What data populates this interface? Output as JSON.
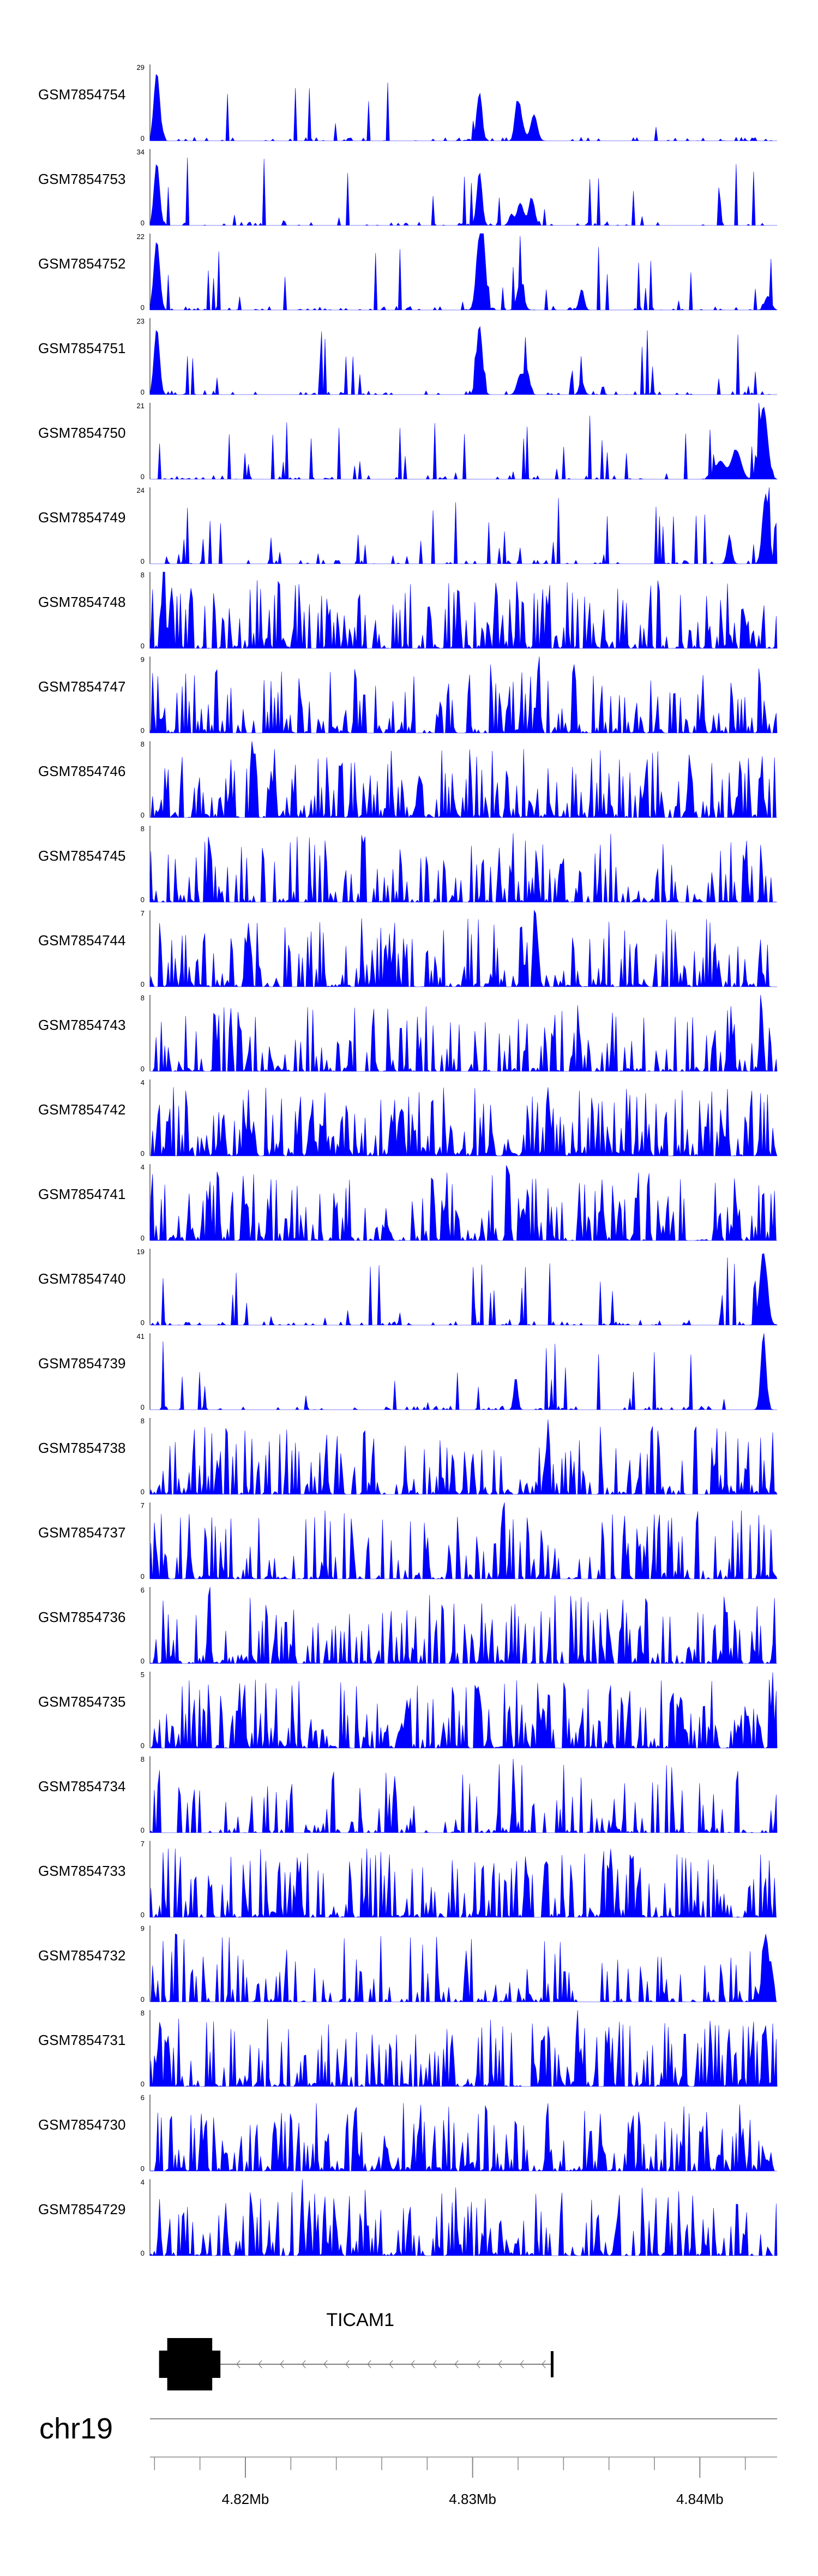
{
  "chart_data": {
    "type": "area",
    "chromosome": "chr19",
    "region": {
      "start": 4813800,
      "end": 4841400
    },
    "fill_color": "#0000ff",
    "gene": {
      "name": "TICAM1",
      "start": 4814200,
      "end": 4831500,
      "strand": "-",
      "exon_start": 4814200,
      "exon_end": 4816900
    },
    "x_ticks": [
      4814000,
      4816000,
      4818000,
      4820000,
      4822000,
      4824000,
      4826000,
      4828000,
      4830000,
      4832000,
      4834000,
      4836000,
      4838000,
      4840000
    ],
    "x_tick_labels": [
      {
        "pos": 4818000,
        "label": "4.82Mb"
      },
      {
        "pos": 4828000,
        "label": "4.83Mb"
      },
      {
        "pos": 4838000,
        "label": "4.84Mb"
      }
    ],
    "tracks": [
      {
        "name": "GSM7854754",
        "ymax": 29,
        "ymax_label": "29",
        "ymin_label": "0",
        "peaks": [
          [
            4814100,
            26,
            180
          ],
          [
            4828300,
            18,
            160
          ],
          [
            4830100,
            8,
            220
          ],
          [
            4830700,
            10,
            200
          ],
          [
            4830000,
            6,
            150
          ],
          [
            4829900,
            5,
            120
          ]
        ],
        "noise": 0.05,
        "seed": 11
      },
      {
        "name": "GSM7854753",
        "ymax": 34,
        "ymax_label": "34",
        "ymin_label": "0",
        "peaks": [
          [
            4814100,
            28,
            170
          ],
          [
            4828300,
            24,
            160
          ],
          [
            4830100,
            10,
            200
          ],
          [
            4830600,
            12,
            180
          ],
          [
            4829700,
            5,
            140
          ]
        ],
        "noise": 0.05,
        "seed": 12
      },
      {
        "name": "GSM7854752",
        "ymax": 22,
        "ymax_label": "22",
        "ymin_label": "0",
        "peaks": [
          [
            4814100,
            20,
            180
          ],
          [
            4828300,
            20,
            200
          ],
          [
            4828500,
            12,
            160
          ],
          [
            4830100,
            8,
            200
          ],
          [
            4832800,
            6,
            150
          ],
          [
            4841000,
            4,
            200
          ]
        ],
        "noise": 0.08,
        "seed": 13
      },
      {
        "name": "GSM7854751",
        "ymax": 23,
        "ymax_label": "23",
        "ymin_label": "0",
        "peaks": [
          [
            4814100,
            20,
            170
          ],
          [
            4828300,
            21,
            180
          ],
          [
            4830100,
            6,
            200
          ],
          [
            4830400,
            7,
            160
          ],
          [
            4832800,
            4,
            150
          ]
        ],
        "noise": 0.07,
        "seed": 14
      },
      {
        "name": "GSM7854750",
        "ymax": 21,
        "ymax_label": "21",
        "ymin_label": "0",
        "peaks": [
          [
            4840800,
            20,
            250
          ],
          [
            4839600,
            8,
            300
          ],
          [
            4838900,
            5,
            300
          ]
        ],
        "noise": 0.1,
        "seed": 15
      },
      {
        "name": "GSM7854749",
        "ymax": 24,
        "ymax_label": "24",
        "ymin_label": "0",
        "peaks": [
          [
            4840900,
            22,
            200
          ],
          [
            4839300,
            8,
            150
          ]
        ],
        "noise": 0.14,
        "seed": 16
      },
      {
        "name": "GSM7854748",
        "ymax": 8,
        "ymax_label": "8",
        "ymin_label": "0",
        "peaks": [
          [
            4814400,
            7,
            120
          ]
        ],
        "noise": 0.55,
        "seed": 17
      },
      {
        "name": "GSM7854747",
        "ymax": 9,
        "ymax_label": "9",
        "ymin_label": "0",
        "peaks": [
          [
            4830900,
            9,
            90
          ]
        ],
        "noise": 0.5,
        "seed": 18
      },
      {
        "name": "GSM7854746",
        "ymax": 8,
        "ymax_label": "8",
        "ymin_label": "0",
        "peaks": [
          [
            4818400,
            8,
            90
          ]
        ],
        "noise": 0.55,
        "seed": 19
      },
      {
        "name": "GSM7854745",
        "ymax": 8,
        "ymax_label": "8",
        "ymin_label": "0",
        "peaks": [
          [
            4816400,
            8,
            80
          ]
        ],
        "noise": 0.45,
        "seed": 20
      },
      {
        "name": "GSM7854744",
        "ymax": 7,
        "ymax_label": "7",
        "ymin_label": "0",
        "peaks": [
          [
            4830800,
            7,
            90
          ]
        ],
        "noise": 0.5,
        "seed": 21
      },
      {
        "name": "GSM7854743",
        "ymax": 8,
        "ymax_label": "8",
        "ymin_label": "0",
        "peaks": [
          [
            4840700,
            8,
            100
          ]
        ],
        "noise": 0.45,
        "seed": 22
      },
      {
        "name": "GSM7854742",
        "ymax": 4,
        "ymax_label": "4",
        "ymin_label": "0",
        "peaks": [],
        "noise": 0.7,
        "seed": 23
      },
      {
        "name": "GSM7854741",
        "ymax": 4,
        "ymax_label": "4",
        "ymin_label": "0",
        "peaks": [
          [
            4829600,
            4,
            80
          ]
        ],
        "noise": 0.55,
        "seed": 24
      },
      {
        "name": "GSM7854740",
        "ymax": 19,
        "ymax_label": "19",
        "ymin_label": "0",
        "peaks": [
          [
            4840800,
            18,
            230
          ]
        ],
        "noise": 0.12,
        "seed": 25
      },
      {
        "name": "GSM7854739",
        "ymax": 41,
        "ymax_label": "41",
        "ymin_label": "0",
        "peaks": [
          [
            4840800,
            40,
            160
          ],
          [
            4829900,
            18,
            120
          ]
        ],
        "noise": 0.08,
        "seed": 26
      },
      {
        "name": "GSM7854738",
        "ymax": 8,
        "ymax_label": "8",
        "ymin_label": "0",
        "peaks": [
          [
            4831300,
            8,
            80
          ]
        ],
        "noise": 0.5,
        "seed": 27
      },
      {
        "name": "GSM7854737",
        "ymax": 7,
        "ymax_label": "7",
        "ymin_label": "0",
        "peaks": [
          [
            4829300,
            7,
            80
          ]
        ],
        "noise": 0.45,
        "seed": 28
      },
      {
        "name": "GSM7854736",
        "ymax": 6,
        "ymax_label": "6",
        "ymin_label": "0",
        "peaks": [
          [
            4816400,
            6,
            90
          ]
        ],
        "noise": 0.55,
        "seed": 29
      },
      {
        "name": "GSM7854735",
        "ymax": 5,
        "ymax_label": "5",
        "ymin_label": "0",
        "peaks": [
          [
            4841200,
            5,
            80
          ]
        ],
        "noise": 0.6,
        "seed": 30
      },
      {
        "name": "GSM7854734",
        "ymax": 8,
        "ymax_label": "8",
        "ymin_label": "0",
        "peaks": [
          [
            4829800,
            8,
            80
          ]
        ],
        "noise": 0.3,
        "seed": 31
      },
      {
        "name": "GSM7854733",
        "ymax": 7,
        "ymax_label": "7",
        "ymin_label": "0",
        "peaks": [],
        "noise": 0.5,
        "seed": 32
      },
      {
        "name": "GSM7854732",
        "ymax": 9,
        "ymax_label": "9",
        "ymin_label": "0",
        "peaks": [
          [
            4840900,
            8,
            200
          ]
        ],
        "noise": 0.35,
        "seed": 33
      },
      {
        "name": "GSM7854731",
        "ymax": 8,
        "ymax_label": "8",
        "ymin_label": "0",
        "peaks": [
          [
            4832600,
            8,
            80
          ]
        ],
        "noise": 0.5,
        "seed": 34
      },
      {
        "name": "GSM7854730",
        "ymax": 6,
        "ymax_label": "6",
        "ymin_label": "0",
        "peaks": [],
        "noise": 0.6,
        "seed": 35
      },
      {
        "name": "GSM7854729",
        "ymax": 4,
        "ymax_label": "4",
        "ymin_label": "0",
        "peaks": [
          [
            4820500,
            4,
            80
          ]
        ],
        "noise": 0.5,
        "seed": 36
      }
    ]
  }
}
